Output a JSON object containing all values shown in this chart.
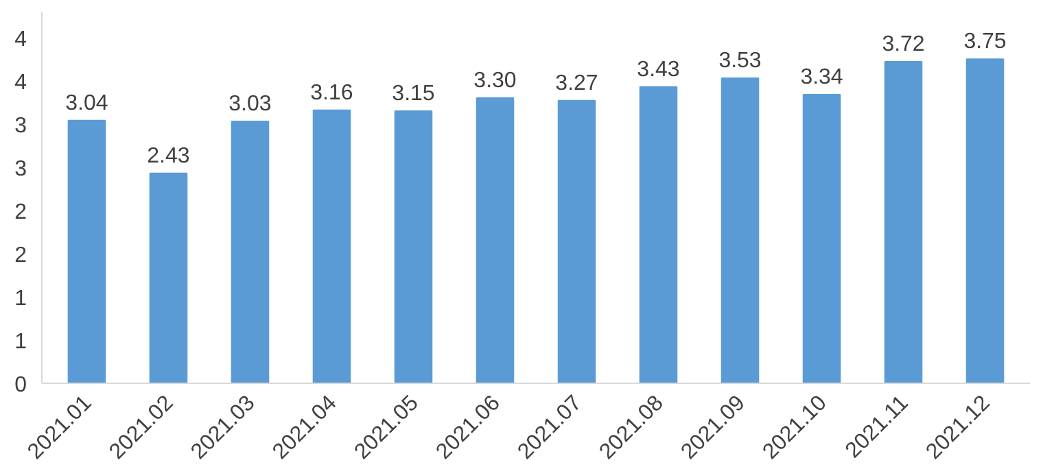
{
  "chart_data": {
    "type": "bar",
    "categories": [
      "2021.01",
      "2021.02",
      "2021.03",
      "2021.04",
      "2021.05",
      "2021.06",
      "2021.07",
      "2021.08",
      "2021.09",
      "2021.10",
      "2021.11",
      "2021.12"
    ],
    "values": [
      3.04,
      2.43,
      3.03,
      3.16,
      3.15,
      3.3,
      3.27,
      3.43,
      3.53,
      3.34,
      3.72,
      3.75
    ],
    "value_labels": [
      "3.04",
      "2.43",
      "3.03",
      "3.16",
      "3.15",
      "3.30",
      "3.27",
      "3.43",
      "3.53",
      "3.34",
      "3.72",
      "3.75"
    ],
    "color": "#5b9bd5",
    "ylim": [
      0,
      4.3
    ],
    "yticks": [
      0,
      {
        "value": 0.5,
        "label": "1"
      },
      1,
      {
        "value": 1.5,
        "label": "2"
      },
      2,
      {
        "value": 2.5,
        "label": "3"
      },
      3,
      {
        "value": 3.5,
        "label": "4"
      },
      4
    ],
    "grid": false
  }
}
